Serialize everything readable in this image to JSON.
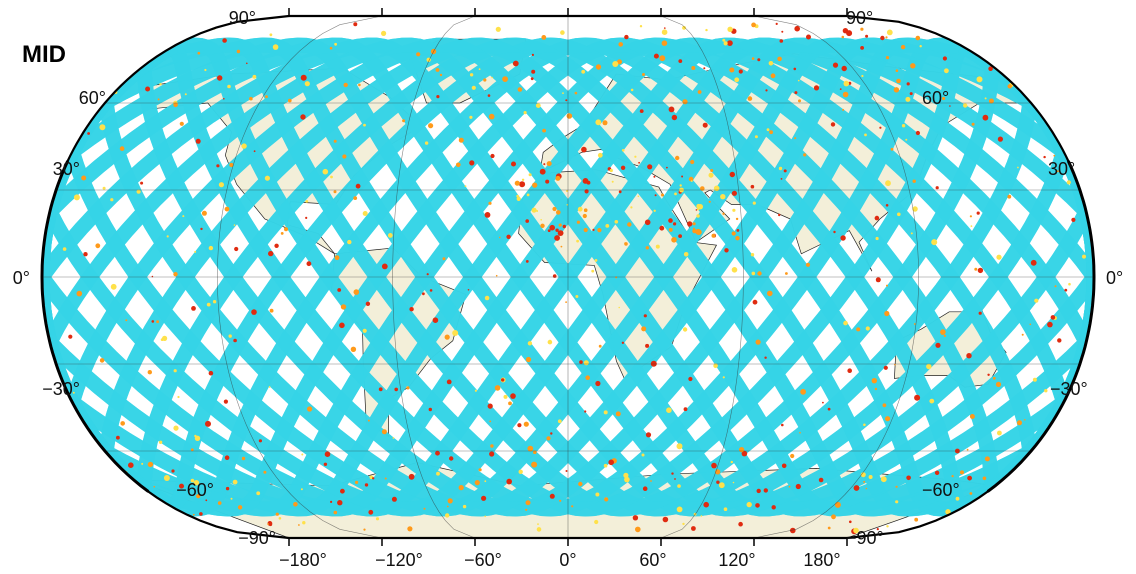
{
  "panel_label": "MID",
  "map": {
    "projection": "Winkel-Tripel-like world map",
    "ocean_color": "#ffffff",
    "land_color": "#f3efd9",
    "track_color": "#35d4e6",
    "hotspot_colors": [
      "#ffe14a",
      "#ff9a1a",
      "#e02b10"
    ],
    "frame_color": "#000000"
  },
  "labels": {
    "lat_left": [
      "90°",
      "60°",
      "30°",
      "0°",
      "−30°",
      "−60°",
      "−90°"
    ],
    "lat_right": [
      "90°",
      "60°",
      "30°",
      "0°",
      "−30°",
      "−60°",
      "−90°"
    ],
    "lon_bottom": [
      "−180°",
      "−120°",
      "−60°",
      "0°",
      "60°",
      "120°",
      "180°"
    ]
  }
}
